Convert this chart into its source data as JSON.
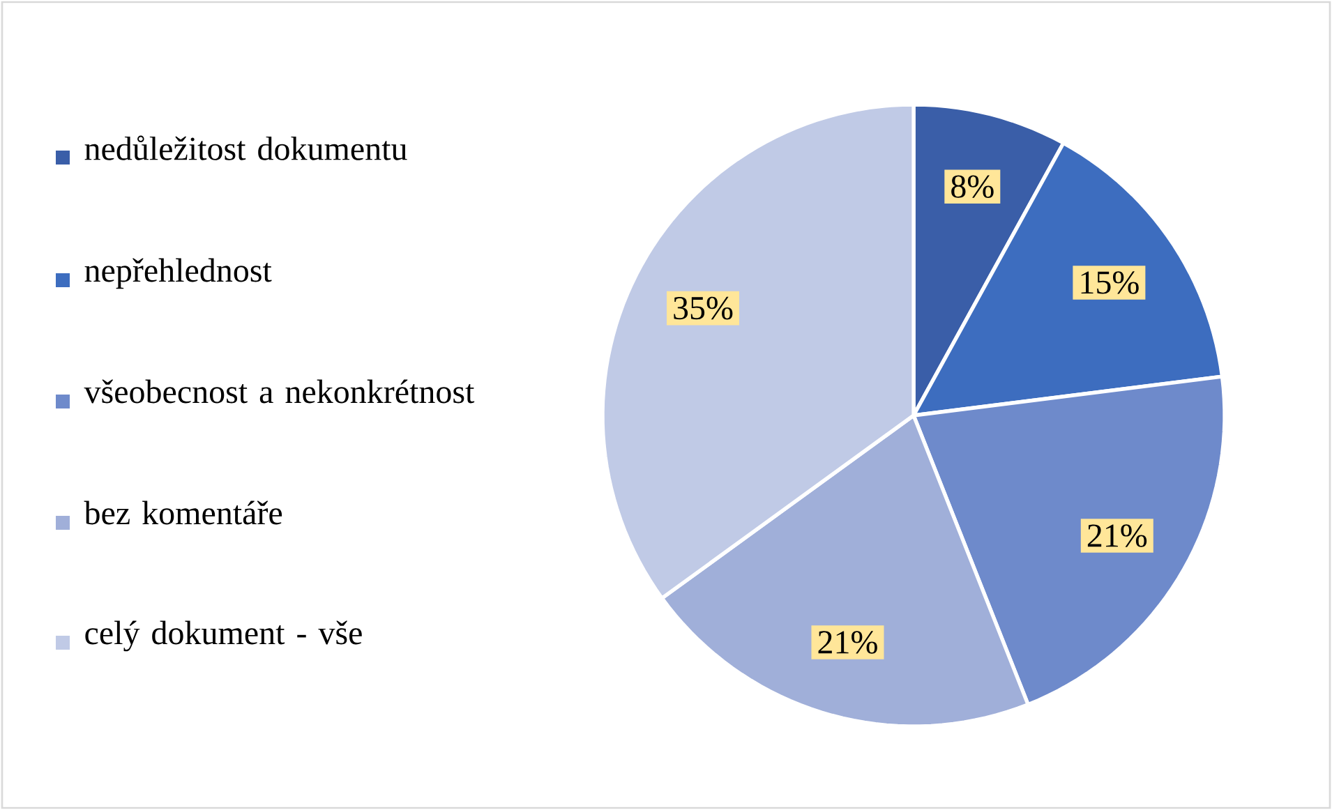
{
  "chart_data": {
    "type": "pie",
    "categories": [
      "nedůležitost dokumentu",
      "nepřehlednost",
      "všeobecnost a nekonkrétnost",
      "bez komentáře",
      "celý dokument - vše"
    ],
    "values": [
      8,
      15,
      21,
      21,
      35
    ],
    "colors": [
      "#3a5ea8",
      "#3d6dbf",
      "#6e8acb",
      "#a0afd9",
      "#c0cae6"
    ],
    "value_labels": [
      "8%",
      "15%",
      "21%",
      "21%",
      "35%"
    ],
    "legend": "left"
  }
}
